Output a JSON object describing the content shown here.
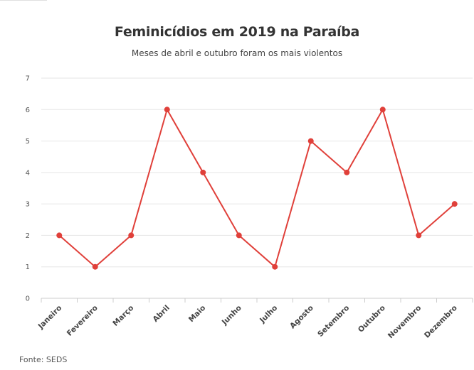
{
  "title": "Feminicídios em 2019 na Paraíba",
  "subtitle": "Meses de abril e outubro foram os mais violentos",
  "source": "Fonte: SEDS",
  "colors": {
    "line": "#e0403a",
    "grid": "#e6e6e6",
    "axis": "#cccccc"
  },
  "chart_data": {
    "type": "line",
    "title": "Feminicídios em 2019 na Paraíba",
    "subtitle": "Meses de abril e outubro foram os mais violentos",
    "categories": [
      "Janeiro",
      "Fevereiro",
      "Março",
      "Abril",
      "Maio",
      "Junho",
      "Julho",
      "Agosto",
      "Setembro",
      "Outubro",
      "Novembro",
      "Dezembro"
    ],
    "series": [
      {
        "values": [
          2,
          1,
          2,
          6,
          4,
          2,
          1,
          5,
          4,
          6,
          2,
          3
        ]
      }
    ],
    "ylim": [
      0,
      7
    ],
    "yticks": [
      0,
      1,
      2,
      3,
      4,
      5,
      6,
      7
    ],
    "grid": true,
    "legend": "none"
  }
}
